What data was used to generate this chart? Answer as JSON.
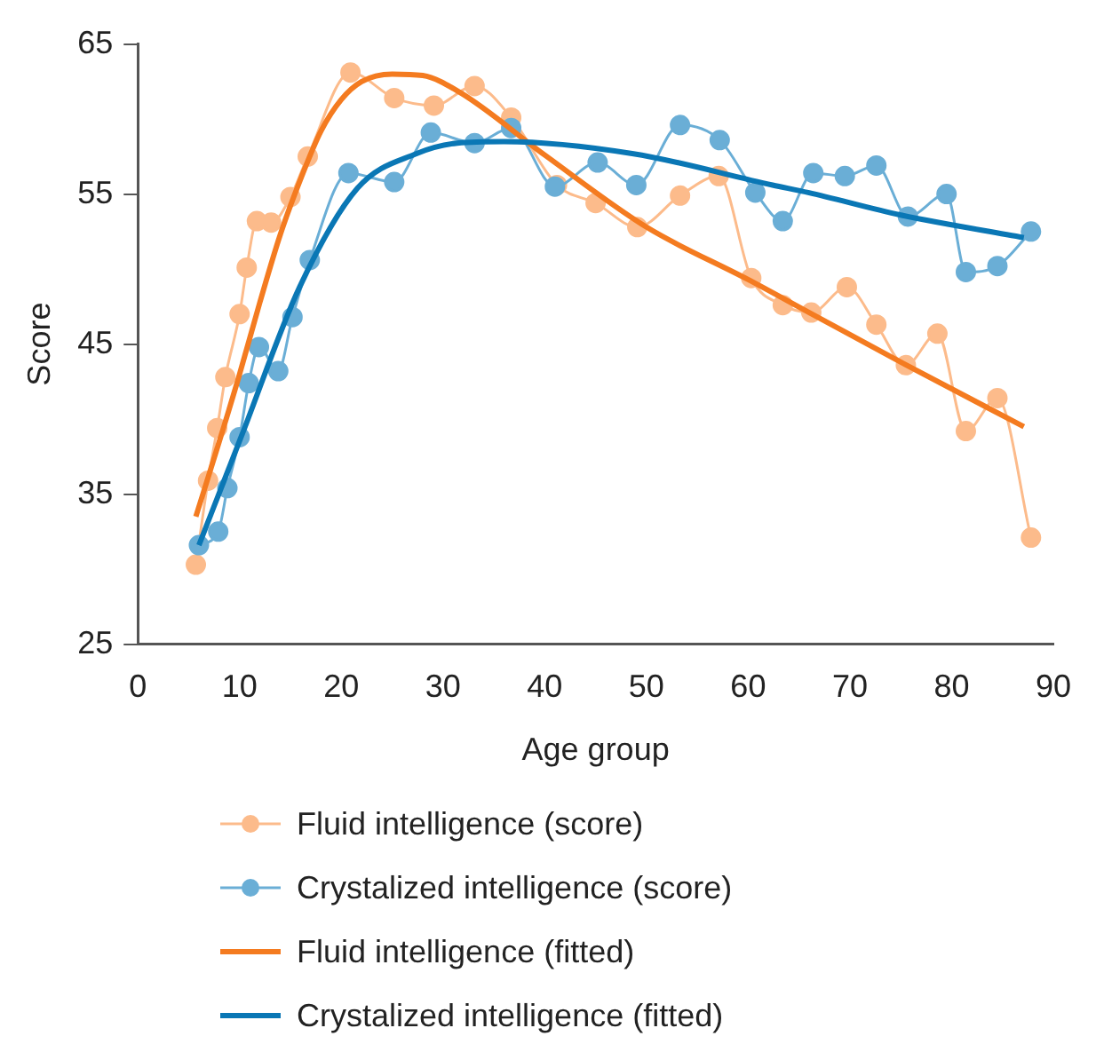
{
  "chart_data": {
    "type": "line",
    "xlabel": "Age group",
    "ylabel": "Score",
    "xlim": [
      0,
      90
    ],
    "xticks": [
      0,
      10,
      20,
      30,
      40,
      50,
      60,
      70,
      80,
      90
    ],
    "ylim": [
      25,
      65
    ],
    "yticks": [
      25,
      35,
      45,
      55,
      65
    ],
    "grid": false,
    "legend": "bottom",
    "series": [
      {
        "name": "Fluid intelligence (score)",
        "color": "#fcbb8b",
        "marker": "circle",
        "x": [
          5.7,
          6.9,
          7.8,
          8.6,
          10.0,
          10.7,
          11.7,
          13.1,
          15.0,
          16.7,
          20.9,
          25.2,
          29.1,
          33.1,
          36.7,
          41.2,
          45.0,
          49.1,
          53.3,
          57.1,
          60.3,
          63.4,
          66.2,
          69.7,
          72.6,
          75.5,
          78.6,
          81.4,
          84.5,
          87.8
        ],
        "values": [
          30.3,
          35.9,
          39.4,
          42.8,
          47.0,
          50.1,
          53.2,
          53.1,
          54.8,
          57.5,
          63.1,
          61.4,
          60.9,
          62.2,
          60.1,
          55.6,
          54.4,
          52.8,
          54.9,
          56.2,
          49.4,
          47.6,
          47.1,
          48.8,
          46.3,
          43.6,
          45.7,
          39.2,
          41.4,
          32.1
        ]
      },
      {
        "name": "Crystalized intelligence (score)",
        "color": "#6aaed6",
        "marker": "circle",
        "x": [
          6.0,
          7.9,
          8.8,
          10.0,
          10.9,
          11.9,
          13.8,
          15.2,
          16.9,
          20.7,
          25.2,
          28.8,
          33.1,
          36.7,
          41.0,
          45.2,
          49.0,
          53.3,
          57.2,
          60.7,
          63.4,
          66.4,
          69.5,
          72.6,
          75.7,
          79.5,
          81.4,
          84.5,
          87.8
        ],
        "values": [
          31.6,
          32.5,
          35.4,
          38.8,
          42.4,
          44.8,
          43.2,
          46.8,
          50.6,
          56.4,
          55.8,
          59.1,
          58.4,
          59.4,
          55.5,
          57.1,
          55.6,
          59.6,
          58.6,
          55.1,
          53.2,
          56.4,
          56.2,
          56.9,
          53.5,
          55.0,
          49.8,
          50.2,
          52.5
        ]
      },
      {
        "name": "Fluid intelligence (fitted)",
        "color": "#f47b20",
        "marker": "none",
        "x": [
          5.7,
          8,
          10,
          12,
          14,
          16,
          18,
          20,
          22,
          25,
          28,
          31.6,
          40,
          50,
          60,
          66,
          75,
          87.1
        ],
        "values": [
          33.5,
          38.5,
          43.0,
          47.8,
          52.3,
          56.0,
          59.2,
          61.3,
          62.5,
          63.0,
          62.9,
          61.8,
          57.6,
          52.8,
          49.3,
          47.1,
          43.8,
          39.5
        ]
      },
      {
        "name": "Crystalized intelligence (fitted)",
        "color": "#0a77b5",
        "marker": "none",
        "x": [
          6.0,
          10.2,
          15.9,
          21.6,
          27.4,
          31.4,
          36,
          48.6,
          62.4,
          65.9,
          75,
          87.1
        ],
        "values": [
          31.6,
          38.9,
          48.8,
          55.4,
          57.7,
          58.4,
          58.5,
          57.7,
          55.6,
          55.1,
          53.6,
          52.1
        ]
      }
    ]
  }
}
